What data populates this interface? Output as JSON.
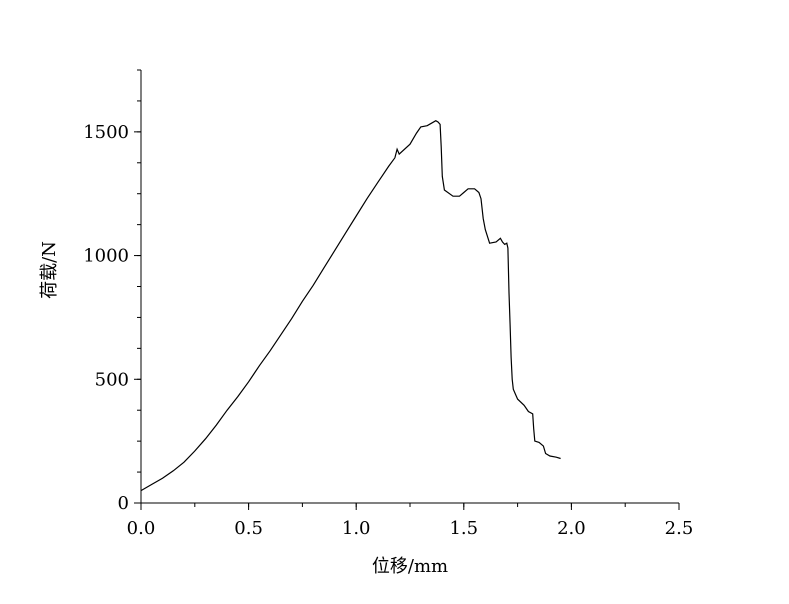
{
  "chart_data": {
    "type": "line",
    "title": "",
    "xlabel": "位移/mm",
    "ylabel": "荷载/N",
    "xlim": [
      0,
      2.5
    ],
    "ylim": [
      0,
      1750
    ],
    "grid": false,
    "legend": "none",
    "x_ticks": [
      {
        "value": 0.0,
        "label": "0.0"
      },
      {
        "value": 0.5,
        "label": "0.5"
      },
      {
        "value": 1.0,
        "label": "1.0"
      },
      {
        "value": 1.5,
        "label": "1.5"
      },
      {
        "value": 2.0,
        "label": "2.0"
      },
      {
        "value": 2.5,
        "label": "2.5"
      }
    ],
    "y_ticks": [
      {
        "value": 0,
        "label": "0"
      },
      {
        "value": 500,
        "label": "500"
      },
      {
        "value": 1000,
        "label": "1000"
      },
      {
        "value": 1500,
        "label": "1500"
      }
    ],
    "x_minor_step": 0.25,
    "y_minor_step": 125,
    "line_color": "#000000",
    "series": [
      {
        "x": [
          0.0,
          0.05,
          0.1,
          0.15,
          0.2,
          0.25,
          0.3,
          0.35,
          0.4,
          0.45,
          0.5,
          0.55,
          0.6,
          0.65,
          0.7,
          0.75,
          0.8,
          0.85,
          0.9,
          0.95,
          1.0,
          1.05,
          1.1,
          1.15,
          1.18,
          1.19,
          1.2,
          1.25,
          1.28,
          1.3,
          1.33,
          1.35,
          1.37,
          1.38,
          1.39,
          1.395,
          1.4,
          1.41,
          1.45,
          1.48,
          1.5,
          1.52,
          1.55,
          1.57,
          1.58,
          1.59,
          1.6,
          1.62,
          1.65,
          1.67,
          1.68,
          1.69,
          1.7,
          1.705,
          1.71,
          1.715,
          1.72,
          1.725,
          1.73,
          1.74,
          1.75,
          1.78,
          1.8,
          1.82,
          1.825,
          1.83,
          1.85,
          1.87,
          1.88,
          1.9,
          1.93,
          1.95
        ],
        "y": [
          50,
          75,
          100,
          130,
          165,
          210,
          260,
          315,
          375,
          430,
          490,
          555,
          615,
          680,
          745,
          815,
          880,
          950,
          1020,
          1090,
          1160,
          1230,
          1295,
          1360,
          1395,
          1430,
          1410,
          1450,
          1495,
          1520,
          1525,
          1535,
          1545,
          1540,
          1530,
          1440,
          1320,
          1265,
          1240,
          1240,
          1255,
          1270,
          1270,
          1255,
          1230,
          1150,
          1105,
          1050,
          1055,
          1070,
          1055,
          1045,
          1050,
          1030,
          850,
          720,
          590,
          500,
          460,
          440,
          420,
          395,
          370,
          360,
          300,
          250,
          245,
          230,
          200,
          190,
          185,
          180
        ]
      }
    ]
  }
}
